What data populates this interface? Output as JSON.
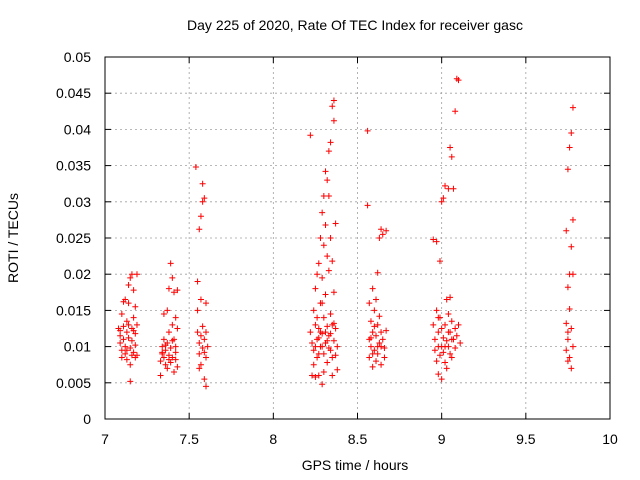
{
  "chart_data": {
    "type": "scatter",
    "title": "Day 225 of 2020, Rate Of TEC Index for receiver gasc",
    "xlabel": "GPS time / hours",
    "ylabel": "ROTI / TECUs",
    "xlim": [
      7,
      10
    ],
    "ylim": [
      0,
      0.05
    ],
    "x_ticks": [
      7,
      7.5,
      8,
      8.5,
      9,
      9.5,
      10
    ],
    "x_tick_labels": [
      "7",
      "7.5",
      "8",
      "8.5",
      "9",
      "9.5",
      "10"
    ],
    "y_ticks": [
      0,
      0.005,
      0.01,
      0.015,
      0.02,
      0.025,
      0.03,
      0.035,
      0.04,
      0.045,
      0.05
    ],
    "y_tick_labels": [
      "0",
      "0.005",
      "0.01",
      "0.015",
      "0.02",
      "0.025",
      "0.03",
      "0.035",
      "0.04",
      "0.045",
      "0.05"
    ],
    "grid": true,
    "marker": "plus",
    "color": "#ff0000",
    "points": [
      [
        7.08,
        0.0125
      ],
      [
        7.09,
        0.0115
      ],
      [
        7.09,
        0.0105
      ],
      [
        7.1,
        0.0095
      ],
      [
        7.1,
        0.0085
      ],
      [
        7.11,
        0.0128
      ],
      [
        7.11,
        0.011
      ],
      [
        7.12,
        0.01
      ],
      [
        7.12,
        0.009
      ],
      [
        7.12,
        0.0165
      ],
      [
        7.13,
        0.0135
      ],
      [
        7.13,
        0.012
      ],
      [
        7.13,
        0.0082
      ],
      [
        7.14,
        0.016
      ],
      [
        7.14,
        0.0185
      ],
      [
        7.14,
        0.0112
      ],
      [
        7.15,
        0.0098
      ],
      [
        7.15,
        0.0195
      ],
      [
        7.15,
        0.0075
      ],
      [
        7.15,
        0.0052
      ],
      [
        7.16,
        0.0125
      ],
      [
        7.16,
        0.0108
      ],
      [
        7.16,
        0.02
      ],
      [
        7.17,
        0.014
      ],
      [
        7.17,
        0.0092
      ],
      [
        7.17,
        0.0178
      ],
      [
        7.18,
        0.0118
      ],
      [
        7.18,
        0.0102
      ],
      [
        7.18,
        0.0155
      ],
      [
        7.19,
        0.02
      ],
      [
        7.19,
        0.013
      ],
      [
        7.19,
        0.0088
      ],
      [
        7.1,
        0.0145
      ],
      [
        7.11,
        0.0162
      ],
      [
        7.13,
        0.0095
      ],
      [
        7.14,
        0.013
      ],
      [
        7.16,
        0.0088
      ],
      [
        7.17,
        0.0122
      ],
      [
        7.18,
        0.0085
      ],
      [
        7.09,
        0.0122
      ],
      [
        7.33,
        0.006
      ],
      [
        7.33,
        0.008
      ],
      [
        7.34,
        0.009
      ],
      [
        7.34,
        0.01
      ],
      [
        7.35,
        0.0085
      ],
      [
        7.35,
        0.011
      ],
      [
        7.35,
        0.0145
      ],
      [
        7.36,
        0.0075
      ],
      [
        7.36,
        0.0095
      ],
      [
        7.37,
        0.0105
      ],
      [
        7.37,
        0.015
      ],
      [
        7.37,
        0.007
      ],
      [
        7.38,
        0.0088
      ],
      [
        7.38,
        0.012
      ],
      [
        7.38,
        0.018
      ],
      [
        7.39,
        0.0098
      ],
      [
        7.39,
        0.0078
      ],
      [
        7.39,
        0.0215
      ],
      [
        7.4,
        0.0195
      ],
      [
        7.4,
        0.013
      ],
      [
        7.4,
        0.0085
      ],
      [
        7.41,
        0.011
      ],
      [
        7.41,
        0.0065
      ],
      [
        7.41,
        0.0175
      ],
      [
        7.42,
        0.0092
      ],
      [
        7.42,
        0.014
      ],
      [
        7.42,
        0.0082
      ],
      [
        7.43,
        0.0125
      ],
      [
        7.43,
        0.0072
      ],
      [
        7.43,
        0.0178
      ],
      [
        7.36,
        0.0102
      ],
      [
        7.38,
        0.0082
      ],
      [
        7.4,
        0.0108
      ],
      [
        7.42,
        0.01
      ],
      [
        7.34,
        0.0092
      ],
      [
        7.54,
        0.0348
      ],
      [
        7.55,
        0.019
      ],
      [
        7.55,
        0.012
      ],
      [
        7.56,
        0.0105
      ],
      [
        7.56,
        0.009
      ],
      [
        7.56,
        0.0262
      ],
      [
        7.57,
        0.028
      ],
      [
        7.57,
        0.0165
      ],
      [
        7.57,
        0.0075
      ],
      [
        7.58,
        0.03
      ],
      [
        7.58,
        0.0325
      ],
      [
        7.58,
        0.0128
      ],
      [
        7.58,
        0.0098
      ],
      [
        7.59,
        0.0305
      ],
      [
        7.59,
        0.011
      ],
      [
        7.59,
        0.0055
      ],
      [
        7.6,
        0.016
      ],
      [
        7.6,
        0.0085
      ],
      [
        7.6,
        0.0045
      ],
      [
        7.61,
        0.01
      ],
      [
        7.55,
        0.015
      ],
      [
        7.57,
        0.0115
      ],
      [
        7.59,
        0.0092
      ],
      [
        7.56,
        0.007
      ],
      [
        7.6,
        0.012
      ],
      [
        8.22,
        0.0392
      ],
      [
        8.22,
        0.012
      ],
      [
        8.23,
        0.0105
      ],
      [
        8.23,
        0.006
      ],
      [
        8.24,
        0.015
      ],
      [
        8.24,
        0.0095
      ],
      [
        8.25,
        0.018
      ],
      [
        8.25,
        0.013
      ],
      [
        8.25,
        0.0058
      ],
      [
        8.26,
        0.011
      ],
      [
        8.26,
        0.02
      ],
      [
        8.26,
        0.0085
      ],
      [
        8.27,
        0.0215
      ],
      [
        8.27,
        0.0125
      ],
      [
        8.27,
        0.006
      ],
      [
        8.28,
        0.025
      ],
      [
        8.28,
        0.01
      ],
      [
        8.28,
        0.016
      ],
      [
        8.29,
        0.0285
      ],
      [
        8.29,
        0.0195
      ],
      [
        8.29,
        0.0118
      ],
      [
        8.29,
        0.0048
      ],
      [
        8.3,
        0.0308
      ],
      [
        8.3,
        0.024
      ],
      [
        8.3,
        0.014
      ],
      [
        8.3,
        0.009
      ],
      [
        8.31,
        0.0342
      ],
      [
        8.31,
        0.0268
      ],
      [
        8.31,
        0.0172
      ],
      [
        8.31,
        0.0105
      ],
      [
        8.32,
        0.033
      ],
      [
        8.32,
        0.0225
      ],
      [
        8.32,
        0.0128
      ],
      [
        8.32,
        0.0078
      ],
      [
        8.33,
        0.037
      ],
      [
        8.33,
        0.0308
      ],
      [
        8.33,
        0.0205
      ],
      [
        8.33,
        0.0115
      ],
      [
        8.34,
        0.0382
      ],
      [
        8.34,
        0.025
      ],
      [
        8.34,
        0.0145
      ],
      [
        8.34,
        0.0095
      ],
      [
        8.35,
        0.0432
      ],
      [
        8.35,
        0.0218
      ],
      [
        8.35,
        0.013
      ],
      [
        8.35,
        0.006
      ],
      [
        8.36,
        0.044
      ],
      [
        8.36,
        0.0412
      ],
      [
        8.36,
        0.0175
      ],
      [
        8.36,
        0.0108
      ],
      [
        8.37,
        0.027
      ],
      [
        8.37,
        0.0125
      ],
      [
        8.37,
        0.0088
      ],
      [
        8.38,
        0.01
      ],
      [
        8.38,
        0.0068
      ],
      [
        8.24,
        0.0075
      ],
      [
        8.28,
        0.012
      ],
      [
        8.3,
        0.0065
      ],
      [
        8.33,
        0.0098
      ],
      [
        8.35,
        0.0085
      ],
      [
        8.25,
        0.01
      ],
      [
        8.26,
        0.014
      ],
      [
        8.27,
        0.0112
      ],
      [
        8.29,
        0.01
      ],
      [
        8.31,
        0.012
      ],
      [
        8.32,
        0.0108
      ],
      [
        8.34,
        0.0118
      ],
      [
        8.36,
        0.0132
      ],
      [
        8.27,
        0.009
      ],
      [
        8.29,
        0.016
      ],
      [
        8.56,
        0.0398
      ],
      [
        8.56,
        0.0295
      ],
      [
        8.57,
        0.016
      ],
      [
        8.57,
        0.011
      ],
      [
        8.57,
        0.0085
      ],
      [
        8.58,
        0.0135
      ],
      [
        8.58,
        0.01
      ],
      [
        8.59,
        0.018
      ],
      [
        8.59,
        0.012
      ],
      [
        8.59,
        0.0072
      ],
      [
        8.6,
        0.015
      ],
      [
        8.6,
        0.0095
      ],
      [
        8.61,
        0.0165
      ],
      [
        8.61,
        0.0115
      ],
      [
        8.61,
        0.008
      ],
      [
        8.62,
        0.0202
      ],
      [
        8.62,
        0.013
      ],
      [
        8.62,
        0.009
      ],
      [
        8.63,
        0.025
      ],
      [
        8.63,
        0.0142
      ],
      [
        8.63,
        0.0105
      ],
      [
        8.64,
        0.0262
      ],
      [
        8.64,
        0.012
      ],
      [
        8.64,
        0.0075
      ],
      [
        8.65,
        0.0255
      ],
      [
        8.65,
        0.011
      ],
      [
        8.66,
        0.0098
      ],
      [
        8.66,
        0.0085
      ],
      [
        8.67,
        0.0122
      ],
      [
        8.67,
        0.026
      ],
      [
        8.58,
        0.0112
      ],
      [
        8.6,
        0.0128
      ],
      [
        8.62,
        0.01
      ],
      [
        8.64,
        0.01
      ],
      [
        8.59,
        0.009
      ],
      [
        8.95,
        0.0248
      ],
      [
        8.95,
        0.013
      ],
      [
        8.96,
        0.011
      ],
      [
        8.96,
        0.0095
      ],
      [
        8.97,
        0.0245
      ],
      [
        8.97,
        0.015
      ],
      [
        8.97,
        0.008
      ],
      [
        8.98,
        0.012
      ],
      [
        8.98,
        0.01
      ],
      [
        8.98,
        0.0062
      ],
      [
        8.99,
        0.0218
      ],
      [
        8.99,
        0.014
      ],
      [
        8.99,
        0.0088
      ],
      [
        9.0,
        0.03
      ],
      [
        9.0,
        0.0125
      ],
      [
        9.0,
        0.0055
      ],
      [
        9.01,
        0.0305
      ],
      [
        9.01,
        0.0112
      ],
      [
        9.01,
        0.0092
      ],
      [
        9.02,
        0.0322
      ],
      [
        9.02,
        0.013
      ],
      [
        9.02,
        0.0078
      ],
      [
        9.03,
        0.0165
      ],
      [
        9.03,
        0.0108
      ],
      [
        9.03,
        0.007
      ],
      [
        9.04,
        0.0318
      ],
      [
        9.04,
        0.0145
      ],
      [
        9.04,
        0.01
      ],
      [
        9.05,
        0.0375
      ],
      [
        9.05,
        0.012
      ],
      [
        9.05,
        0.009
      ],
      [
        9.06,
        0.0362
      ],
      [
        9.06,
        0.0135
      ],
      [
        9.06,
        0.0085
      ],
      [
        9.07,
        0.0318
      ],
      [
        9.07,
        0.011
      ],
      [
        9.08,
        0.0425
      ],
      [
        9.08,
        0.0125
      ],
      [
        9.08,
        0.0098
      ],
      [
        9.09,
        0.047
      ],
      [
        9.09,
        0.0115
      ],
      [
        9.1,
        0.0468
      ],
      [
        9.1,
        0.013
      ],
      [
        9.11,
        0.0105
      ],
      [
        9.02,
        0.01
      ],
      [
        9.04,
        0.012
      ],
      [
        9.06,
        0.011
      ],
      [
        8.98,
        0.014
      ],
      [
        9.0,
        0.01
      ],
      [
        9.05,
        0.0168
      ],
      [
        9.74,
        0.026
      ],
      [
        9.74,
        0.0132
      ],
      [
        9.74,
        0.0095
      ],
      [
        9.75,
        0.0345
      ],
      [
        9.75,
        0.0182
      ],
      [
        9.75,
        0.011
      ],
      [
        9.75,
        0.008
      ],
      [
        9.76,
        0.0375
      ],
      [
        9.76,
        0.02
      ],
      [
        9.76,
        0.0152
      ],
      [
        9.76,
        0.0085
      ],
      [
        9.77,
        0.0395
      ],
      [
        9.77,
        0.0238
      ],
      [
        9.77,
        0.0125
      ],
      [
        9.77,
        0.007
      ],
      [
        9.78,
        0.043
      ],
      [
        9.78,
        0.0275
      ],
      [
        9.78,
        0.02
      ],
      [
        9.78,
        0.01
      ],
      [
        9.75,
        0.012
      ]
    ]
  }
}
